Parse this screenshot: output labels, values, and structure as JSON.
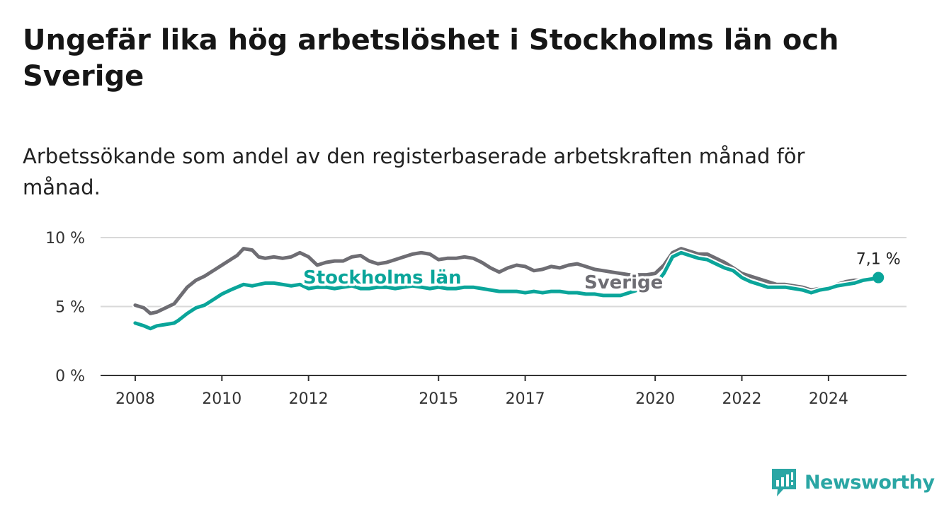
{
  "title": "Ungefär lika hög arbetslöshet i Stockholms län och Sverige",
  "subtitle": "Arbetssökande som andel av den registerbaserade arbetskraften månad för månad.",
  "brand": {
    "name": "Newsworthy",
    "icon": "newsworthy-logo-icon",
    "color": "#2aa6a4"
  },
  "colors": {
    "stockholm": "#0aa59a",
    "sverige": "#6e6d73",
    "grid": "#d9d9d9",
    "axis": "#333333"
  },
  "chart_data": {
    "type": "line",
    "title": "Ungefär lika hög arbetslöshet i Stockholms län och Sverige",
    "xlabel": "",
    "ylabel": "",
    "ylim": [
      0,
      10
    ],
    "yticks": [
      {
        "value": 0,
        "label": "0 %"
      },
      {
        "value": 5,
        "label": "5 %"
      },
      {
        "value": 10,
        "label": "10 %"
      }
    ],
    "xticks": [
      {
        "value": 2008,
        "label": "2008"
      },
      {
        "value": 2010,
        "label": "2010"
      },
      {
        "value": 2012,
        "label": "2012"
      },
      {
        "value": 2015,
        "label": "2015"
      },
      {
        "value": 2017,
        "label": "2017"
      },
      {
        "value": 2020,
        "label": "2020"
      },
      {
        "value": 2022,
        "label": "2022"
      },
      {
        "value": 2024,
        "label": "2024"
      }
    ],
    "xlim": [
      2007.2,
      2025.8
    ],
    "grid": true,
    "end_label": "7,1 %",
    "series": [
      {
        "name": "Sverige",
        "color": "#6e6d73",
        "points": [
          [
            2008.0,
            5.1
          ],
          [
            2008.2,
            4.9
          ],
          [
            2008.35,
            4.5
          ],
          [
            2008.5,
            4.6
          ],
          [
            2008.7,
            4.9
          ],
          [
            2008.9,
            5.2
          ],
          [
            2009.0,
            5.6
          ],
          [
            2009.2,
            6.4
          ],
          [
            2009.4,
            6.9
          ],
          [
            2009.6,
            7.2
          ],
          [
            2009.8,
            7.6
          ],
          [
            2010.0,
            8.0
          ],
          [
            2010.2,
            8.4
          ],
          [
            2010.35,
            8.7
          ],
          [
            2010.5,
            9.2
          ],
          [
            2010.7,
            9.1
          ],
          [
            2010.85,
            8.6
          ],
          [
            2011.0,
            8.5
          ],
          [
            2011.2,
            8.6
          ],
          [
            2011.4,
            8.5
          ],
          [
            2011.6,
            8.6
          ],
          [
            2011.8,
            8.9
          ],
          [
            2012.0,
            8.6
          ],
          [
            2012.2,
            8.0
          ],
          [
            2012.4,
            8.2
          ],
          [
            2012.6,
            8.3
          ],
          [
            2012.8,
            8.3
          ],
          [
            2013.0,
            8.6
          ],
          [
            2013.2,
            8.7
          ],
          [
            2013.4,
            8.3
          ],
          [
            2013.6,
            8.1
          ],
          [
            2013.8,
            8.2
          ],
          [
            2014.0,
            8.4
          ],
          [
            2014.2,
            8.6
          ],
          [
            2014.4,
            8.8
          ],
          [
            2014.6,
            8.9
          ],
          [
            2014.8,
            8.8
          ],
          [
            2015.0,
            8.4
          ],
          [
            2015.2,
            8.5
          ],
          [
            2015.4,
            8.5
          ],
          [
            2015.6,
            8.6
          ],
          [
            2015.8,
            8.5
          ],
          [
            2016.0,
            8.2
          ],
          [
            2016.2,
            7.8
          ],
          [
            2016.4,
            7.5
          ],
          [
            2016.6,
            7.8
          ],
          [
            2016.8,
            8.0
          ],
          [
            2017.0,
            7.9
          ],
          [
            2017.2,
            7.6
          ],
          [
            2017.4,
            7.7
          ],
          [
            2017.6,
            7.9
          ],
          [
            2017.8,
            7.8
          ],
          [
            2018.0,
            8.0
          ],
          [
            2018.2,
            8.1
          ],
          [
            2018.4,
            7.9
          ],
          [
            2018.6,
            7.7
          ],
          [
            2018.8,
            7.6
          ],
          [
            2019.0,
            7.5
          ],
          [
            2019.2,
            7.4
          ],
          [
            2019.4,
            7.3
          ],
          [
            2019.6,
            7.3
          ],
          [
            2019.8,
            7.3
          ],
          [
            2020.0,
            7.4
          ],
          [
            2020.2,
            8.0
          ],
          [
            2020.4,
            8.9
          ],
          [
            2020.6,
            9.2
          ],
          [
            2020.8,
            9.0
          ],
          [
            2021.0,
            8.8
          ],
          [
            2021.2,
            8.8
          ],
          [
            2021.4,
            8.5
          ],
          [
            2021.6,
            8.2
          ],
          [
            2021.8,
            7.8
          ],
          [
            2022.0,
            7.4
          ],
          [
            2022.2,
            7.2
          ],
          [
            2022.4,
            7.0
          ],
          [
            2022.6,
            6.8
          ],
          [
            2022.8,
            6.6
          ],
          [
            2023.0,
            6.6
          ],
          [
            2023.2,
            6.5
          ],
          [
            2023.4,
            6.4
          ],
          [
            2023.6,
            6.2
          ],
          [
            2023.8,
            6.3
          ],
          [
            2024.0,
            6.4
          ],
          [
            2024.2,
            6.6
          ],
          [
            2024.4,
            6.8
          ],
          [
            2024.6,
            6.9
          ],
          [
            2024.8,
            6.9
          ],
          [
            2025.0,
            7.0
          ],
          [
            2025.15,
            7.1
          ]
        ]
      },
      {
        "name": "Stockholms län",
        "color": "#0aa59a",
        "points": [
          [
            2008.0,
            3.8
          ],
          [
            2008.2,
            3.6
          ],
          [
            2008.35,
            3.4
          ],
          [
            2008.5,
            3.6
          ],
          [
            2008.7,
            3.7
          ],
          [
            2008.9,
            3.8
          ],
          [
            2009.0,
            4.0
          ],
          [
            2009.2,
            4.5
          ],
          [
            2009.4,
            4.9
          ],
          [
            2009.6,
            5.1
          ],
          [
            2009.8,
            5.5
          ],
          [
            2010.0,
            5.9
          ],
          [
            2010.2,
            6.2
          ],
          [
            2010.35,
            6.4
          ],
          [
            2010.5,
            6.6
          ],
          [
            2010.7,
            6.5
          ],
          [
            2010.85,
            6.6
          ],
          [
            2011.0,
            6.7
          ],
          [
            2011.2,
            6.7
          ],
          [
            2011.4,
            6.6
          ],
          [
            2011.6,
            6.5
          ],
          [
            2011.8,
            6.6
          ],
          [
            2012.0,
            6.3
          ],
          [
            2012.2,
            6.4
          ],
          [
            2012.4,
            6.4
          ],
          [
            2012.6,
            6.3
          ],
          [
            2012.8,
            6.4
          ],
          [
            2013.0,
            6.5
          ],
          [
            2013.2,
            6.3
          ],
          [
            2013.4,
            6.3
          ],
          [
            2013.6,
            6.4
          ],
          [
            2013.8,
            6.4
          ],
          [
            2014.0,
            6.3
          ],
          [
            2014.2,
            6.4
          ],
          [
            2014.4,
            6.5
          ],
          [
            2014.6,
            6.4
          ],
          [
            2014.8,
            6.3
          ],
          [
            2015.0,
            6.4
          ],
          [
            2015.2,
            6.3
          ],
          [
            2015.4,
            6.3
          ],
          [
            2015.6,
            6.4
          ],
          [
            2015.8,
            6.4
          ],
          [
            2016.0,
            6.3
          ],
          [
            2016.2,
            6.2
          ],
          [
            2016.4,
            6.1
          ],
          [
            2016.6,
            6.1
          ],
          [
            2016.8,
            6.1
          ],
          [
            2017.0,
            6.0
          ],
          [
            2017.2,
            6.1
          ],
          [
            2017.4,
            6.0
          ],
          [
            2017.6,
            6.1
          ],
          [
            2017.8,
            6.1
          ],
          [
            2018.0,
            6.0
          ],
          [
            2018.2,
            6.0
          ],
          [
            2018.4,
            5.9
          ],
          [
            2018.6,
            5.9
          ],
          [
            2018.8,
            5.8
          ],
          [
            2019.0,
            5.8
          ],
          [
            2019.2,
            5.8
          ],
          [
            2019.4,
            6.0
          ],
          [
            2019.6,
            6.2
          ],
          [
            2019.8,
            6.4
          ],
          [
            2020.0,
            6.6
          ],
          [
            2020.2,
            7.4
          ],
          [
            2020.4,
            8.6
          ],
          [
            2020.6,
            8.9
          ],
          [
            2020.8,
            8.7
          ],
          [
            2021.0,
            8.5
          ],
          [
            2021.2,
            8.4
          ],
          [
            2021.4,
            8.1
          ],
          [
            2021.6,
            7.8
          ],
          [
            2021.8,
            7.6
          ],
          [
            2022.0,
            7.1
          ],
          [
            2022.2,
            6.8
          ],
          [
            2022.4,
            6.6
          ],
          [
            2022.6,
            6.4
          ],
          [
            2022.8,
            6.4
          ],
          [
            2023.0,
            6.4
          ],
          [
            2023.2,
            6.3
          ],
          [
            2023.4,
            6.2
          ],
          [
            2023.6,
            6.0
          ],
          [
            2023.8,
            6.2
          ],
          [
            2024.0,
            6.3
          ],
          [
            2024.2,
            6.5
          ],
          [
            2024.4,
            6.6
          ],
          [
            2024.6,
            6.7
          ],
          [
            2024.8,
            6.9
          ],
          [
            2025.0,
            7.0
          ],
          [
            2025.15,
            7.1
          ]
        ]
      }
    ]
  }
}
